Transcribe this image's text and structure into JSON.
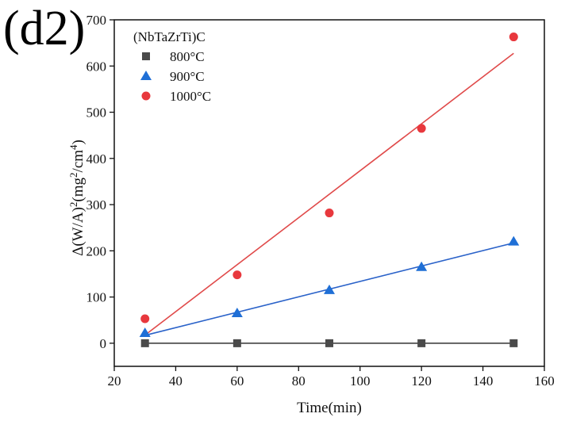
{
  "panel_label": "(d2)",
  "chart_data": {
    "type": "scatter",
    "title": "",
    "xlabel": "Time(min)",
    "ylabel_parts": {
      "base": "Δ(W/A)",
      "exp1": "2",
      "mid": "(mg",
      "exp2": "2",
      "mid2": "/cm",
      "exp3": "4",
      "end": ")"
    },
    "xlim": [
      20,
      160
    ],
    "ylim": [
      -50,
      700
    ],
    "xticks": [
      20,
      40,
      60,
      80,
      100,
      120,
      140,
      160
    ],
    "yticks": [
      0,
      100,
      200,
      300,
      400,
      500,
      600,
      700
    ],
    "ytick_labels": [
      "0",
      "100",
      "200",
      "300",
      "400",
      "500",
      "600",
      "700"
    ],
    "legend_title": "(NbTaZrTi)C",
    "legend_position": "top-left",
    "series": [
      {
        "name": "800°C",
        "marker": "square",
        "color": "#4a4a4a",
        "x": [
          30,
          60,
          90,
          120,
          150
        ],
        "y": [
          0,
          0,
          0,
          0,
          0
        ],
        "fit": {
          "slope": 0,
          "intercept": 0
        },
        "fit_color": "#333333"
      },
      {
        "name": "900°C",
        "marker": "triangle",
        "color": "#1f6fd6",
        "x": [
          30,
          60,
          90,
          120,
          150
        ],
        "y": [
          22,
          65,
          115,
          165,
          220
        ],
        "fit": {
          "slope": 1.667,
          "intercept": -33
        },
        "fit_color": "#2a62c9"
      },
      {
        "name": "1000°C",
        "marker": "circle",
        "color": "#e8383d",
        "x": [
          30,
          60,
          90,
          120,
          150
        ],
        "y": [
          53,
          148,
          282,
          465,
          663
        ],
        "fit": {
          "slope": 5.083,
          "intercept": -135
        },
        "fit_color": "#e04a4a"
      }
    ]
  }
}
